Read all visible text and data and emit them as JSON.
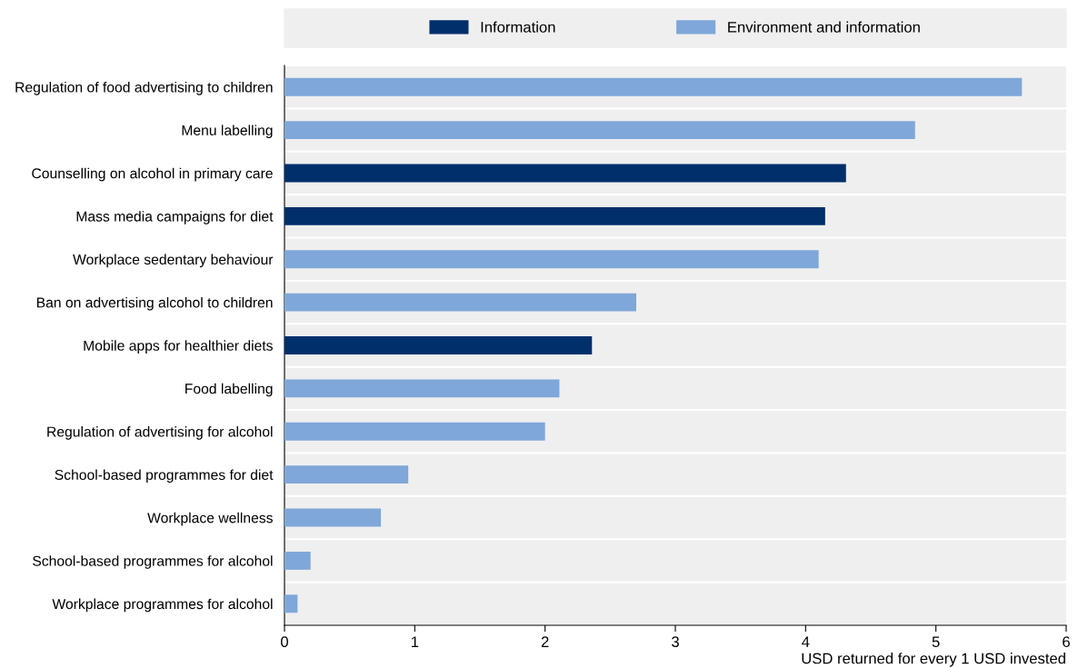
{
  "chart_data": {
    "type": "bar",
    "orientation": "horizontal",
    "xlabel": "USD returned for every 1 USD invested",
    "categories": [
      "Regulation of food advertising to children",
      "Menu labelling",
      "Counselling on alcohol in primary care",
      "Mass media campaigns for diet",
      "Workplace sedentary behaviour",
      "Ban on advertising alcohol to children",
      "Mobile apps for healthier diets",
      "Food labelling",
      "Regulation of advertising for alcohol",
      "School-based programmes for diet",
      "Workplace wellness",
      "School-based programmes for alcohol",
      "Workplace programmes for alcohol"
    ],
    "series": [
      {
        "name": "Information",
        "color": "#002f6c",
        "values": [
          null,
          null,
          4.31,
          4.15,
          null,
          null,
          2.36,
          null,
          null,
          null,
          null,
          null,
          null
        ]
      },
      {
        "name": "Environment and information",
        "color": "#7fa7d9",
        "values": [
          5.66,
          4.84,
          null,
          null,
          4.1,
          2.7,
          null,
          2.11,
          2.0,
          0.95,
          0.74,
          0.2,
          0.1
        ]
      }
    ],
    "xlim": [
      0,
      6
    ],
    "xticks": [
      0,
      1,
      2,
      3,
      4,
      5,
      6
    ],
    "grid": "y",
    "legend": "top"
  }
}
